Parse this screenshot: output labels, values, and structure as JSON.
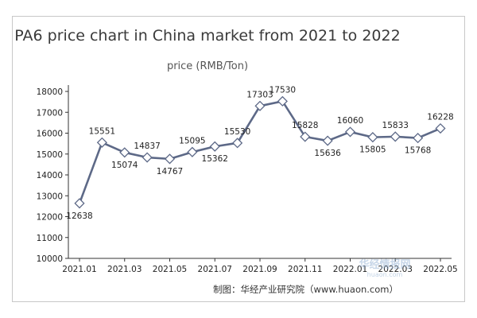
{
  "chart_data": {
    "type": "line",
    "title": "PA6 price chart in China market from 2021 to 2022",
    "ylabel": "price (RMB/Ton)",
    "ylim": [
      10000,
      18000
    ],
    "yticks": [
      10000,
      11000,
      12000,
      13000,
      14000,
      15000,
      16000,
      17000,
      18000
    ],
    "xtick_labels": [
      "2021.01",
      "2021.03",
      "2021.05",
      "2021.07",
      "2021.09",
      "2021.11",
      "2022.01",
      "2022.03",
      "2022.05"
    ],
    "series": [
      {
        "values": [
          12638,
          15551,
          15074,
          14837,
          14767,
          15095,
          15362,
          15530,
          17303,
          17530,
          15828,
          15636,
          16060,
          15805,
          15833,
          15768,
          16228
        ],
        "color": "#5d6987"
      }
    ],
    "grid": false,
    "legend": "none"
  },
  "credit": "制图：华经产业研究院（www.huaon.com）",
  "watermark": {
    "brand": "华经情报网",
    "site": "huaon.com"
  }
}
